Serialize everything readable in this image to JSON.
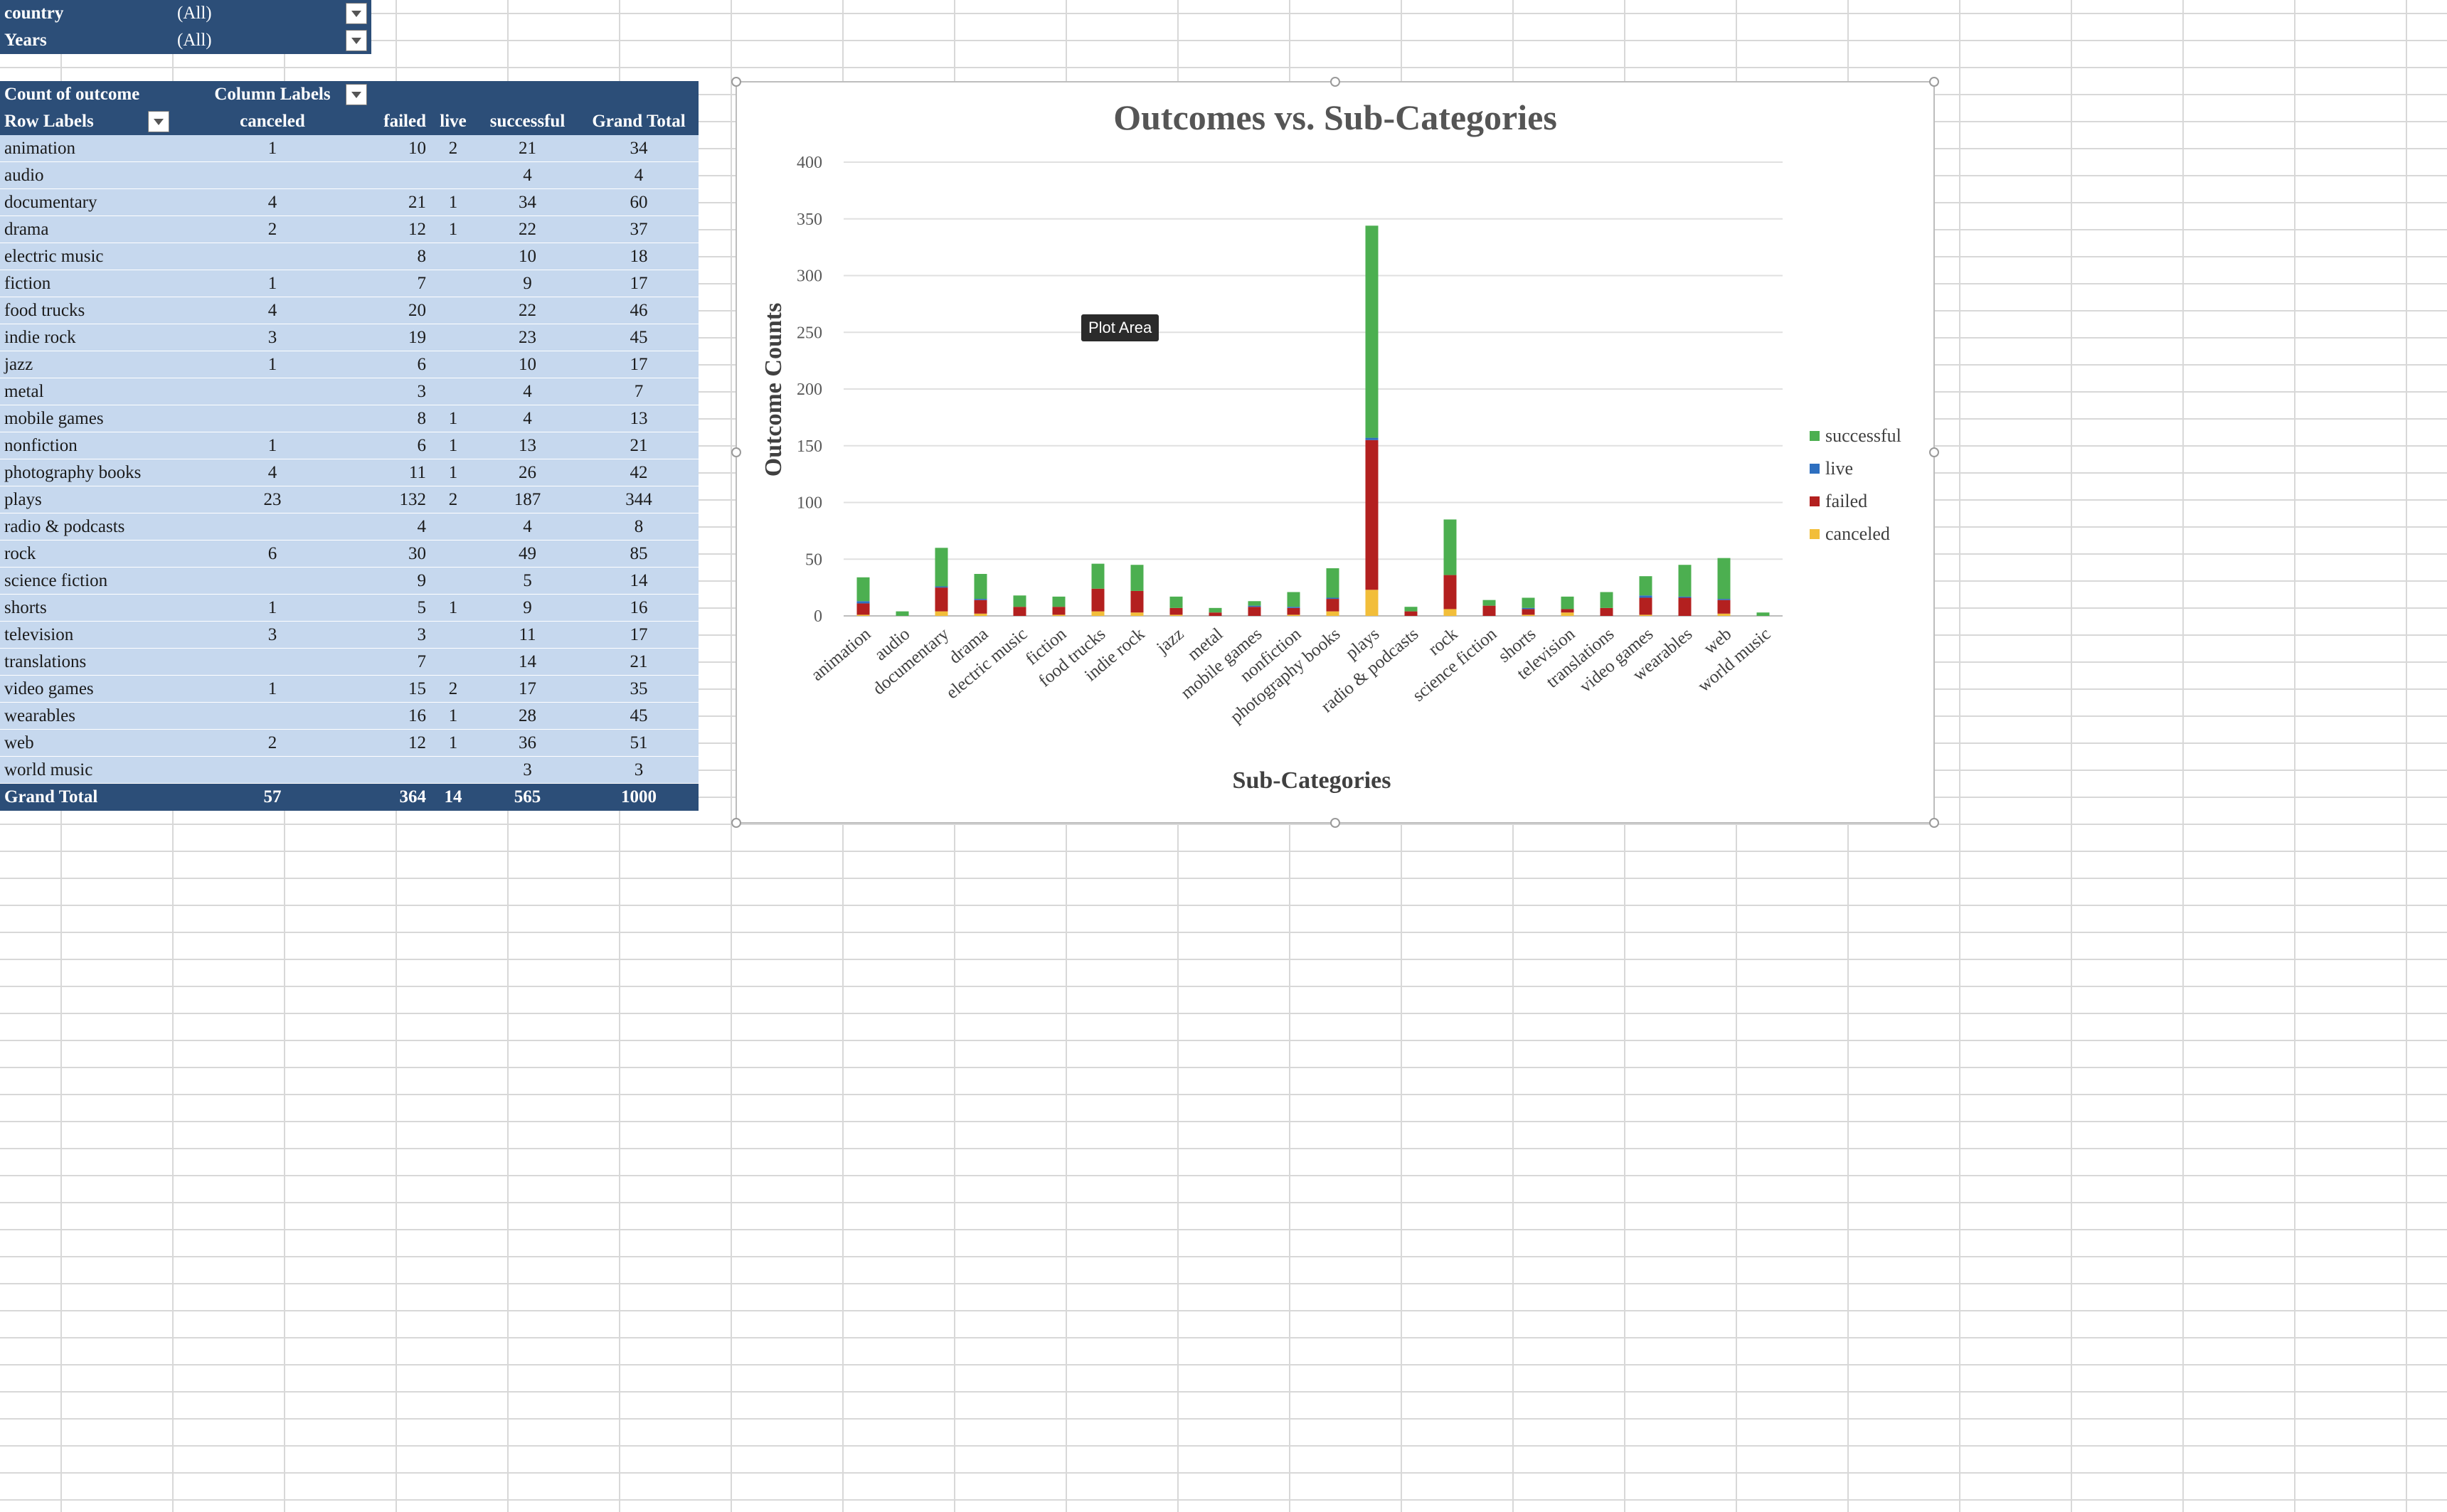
{
  "filters": [
    {
      "name": "country",
      "value": "(All)"
    },
    {
      "name": "Years",
      "value": "(All)"
    }
  ],
  "pivot": {
    "corner_label": "Count of outcome",
    "column_labels": "Column Labels",
    "row_labels": "Row Labels",
    "columns": [
      "canceled",
      "failed",
      "live",
      "successful",
      "Grand Total"
    ],
    "rows": [
      {
        "label": "animation",
        "canceled": "1",
        "failed": "10",
        "live": "2",
        "successful": "21",
        "total": "34"
      },
      {
        "label": "audio",
        "canceled": "",
        "failed": "",
        "live": "",
        "successful": "4",
        "total": "4"
      },
      {
        "label": "documentary",
        "canceled": "4",
        "failed": "21",
        "live": "1",
        "successful": "34",
        "total": "60"
      },
      {
        "label": "drama",
        "canceled": "2",
        "failed": "12",
        "live": "1",
        "successful": "22",
        "total": "37"
      },
      {
        "label": "electric music",
        "canceled": "",
        "failed": "8",
        "live": "",
        "successful": "10",
        "total": "18"
      },
      {
        "label": "fiction",
        "canceled": "1",
        "failed": "7",
        "live": "",
        "successful": "9",
        "total": "17"
      },
      {
        "label": "food trucks",
        "canceled": "4",
        "failed": "20",
        "live": "",
        "successful": "22",
        "total": "46"
      },
      {
        "label": "indie rock",
        "canceled": "3",
        "failed": "19",
        "live": "",
        "successful": "23",
        "total": "45"
      },
      {
        "label": "jazz",
        "canceled": "1",
        "failed": "6",
        "live": "",
        "successful": "10",
        "total": "17"
      },
      {
        "label": "metal",
        "canceled": "",
        "failed": "3",
        "live": "",
        "successful": "4",
        "total": "7"
      },
      {
        "label": "mobile games",
        "canceled": "",
        "failed": "8",
        "live": "1",
        "successful": "4",
        "total": "13"
      },
      {
        "label": "nonfiction",
        "canceled": "1",
        "failed": "6",
        "live": "1",
        "successful": "13",
        "total": "21"
      },
      {
        "label": "photography books",
        "canceled": "4",
        "failed": "11",
        "live": "1",
        "successful": "26",
        "total": "42"
      },
      {
        "label": "plays",
        "canceled": "23",
        "failed": "132",
        "live": "2",
        "successful": "187",
        "total": "344"
      },
      {
        "label": "radio & podcasts",
        "canceled": "",
        "failed": "4",
        "live": "",
        "successful": "4",
        "total": "8"
      },
      {
        "label": "rock",
        "canceled": "6",
        "failed": "30",
        "live": "",
        "successful": "49",
        "total": "85"
      },
      {
        "label": "science fiction",
        "canceled": "",
        "failed": "9",
        "live": "",
        "successful": "5",
        "total": "14"
      },
      {
        "label": "shorts",
        "canceled": "1",
        "failed": "5",
        "live": "1",
        "successful": "9",
        "total": "16"
      },
      {
        "label": "television",
        "canceled": "3",
        "failed": "3",
        "live": "",
        "successful": "11",
        "total": "17"
      },
      {
        "label": "translations",
        "canceled": "",
        "failed": "7",
        "live": "",
        "successful": "14",
        "total": "21"
      },
      {
        "label": "video games",
        "canceled": "1",
        "failed": "15",
        "live": "2",
        "successful": "17",
        "total": "35"
      },
      {
        "label": "wearables",
        "canceled": "",
        "failed": "16",
        "live": "1",
        "successful": "28",
        "total": "45"
      },
      {
        "label": "web",
        "canceled": "2",
        "failed": "12",
        "live": "1",
        "successful": "36",
        "total": "51"
      },
      {
        "label": "world music",
        "canceled": "",
        "failed": "",
        "live": "",
        "successful": "3",
        "total": "3"
      }
    ],
    "grand_total": {
      "label": "Grand Total",
      "canceled": "57",
      "failed": "364",
      "live": "14",
      "successful": "565",
      "total": "1000"
    }
  },
  "tooltip": "Plot Area",
  "colors": {
    "header": "#2c4e78",
    "row": "#c6d8ee",
    "successful": "#4caf50",
    "live": "#2e6fc0",
    "failed": "#b3201f",
    "canceled": "#f2be3a"
  },
  "chart_data": {
    "type": "bar",
    "stacked": true,
    "title": "Outcomes vs. Sub-Categories",
    "xlabel": "Sub-Categories",
    "ylabel": "Outcome Counts",
    "ylim": [
      0,
      400
    ],
    "yticks": [
      0,
      50,
      100,
      150,
      200,
      250,
      300,
      350,
      400
    ],
    "grid": true,
    "legend_position": "right",
    "categories": [
      "animation",
      "audio",
      "documentary",
      "drama",
      "electric music",
      "fiction",
      "food trucks",
      "indie rock",
      "jazz",
      "metal",
      "mobile games",
      "nonfiction",
      "photography books",
      "plays",
      "radio & podcasts",
      "rock",
      "science fiction",
      "shorts",
      "television",
      "translations",
      "video games",
      "wearables",
      "web",
      "world music"
    ],
    "series": [
      {
        "name": "canceled",
        "color": "#f2be3a",
        "values": [
          1,
          0,
          4,
          2,
          0,
          1,
          4,
          3,
          1,
          0,
          0,
          1,
          4,
          23,
          0,
          6,
          0,
          1,
          3,
          0,
          1,
          0,
          2,
          0
        ]
      },
      {
        "name": "failed",
        "color": "#b3201f",
        "values": [
          10,
          0,
          21,
          12,
          8,
          7,
          20,
          19,
          6,
          3,
          8,
          6,
          11,
          132,
          4,
          30,
          9,
          5,
          3,
          7,
          15,
          16,
          12,
          0
        ]
      },
      {
        "name": "live",
        "color": "#2e6fc0",
        "values": [
          2,
          0,
          1,
          1,
          0,
          0,
          0,
          0,
          0,
          0,
          1,
          1,
          1,
          2,
          0,
          0,
          0,
          1,
          0,
          0,
          2,
          1,
          1,
          0
        ]
      },
      {
        "name": "successful",
        "color": "#4caf50",
        "values": [
          21,
          4,
          34,
          22,
          10,
          9,
          22,
          23,
          10,
          4,
          4,
          13,
          26,
          187,
          4,
          49,
          5,
          9,
          11,
          14,
          17,
          28,
          36,
          3
        ]
      }
    ],
    "legend_order": [
      "successful",
      "live",
      "failed",
      "canceled"
    ]
  }
}
